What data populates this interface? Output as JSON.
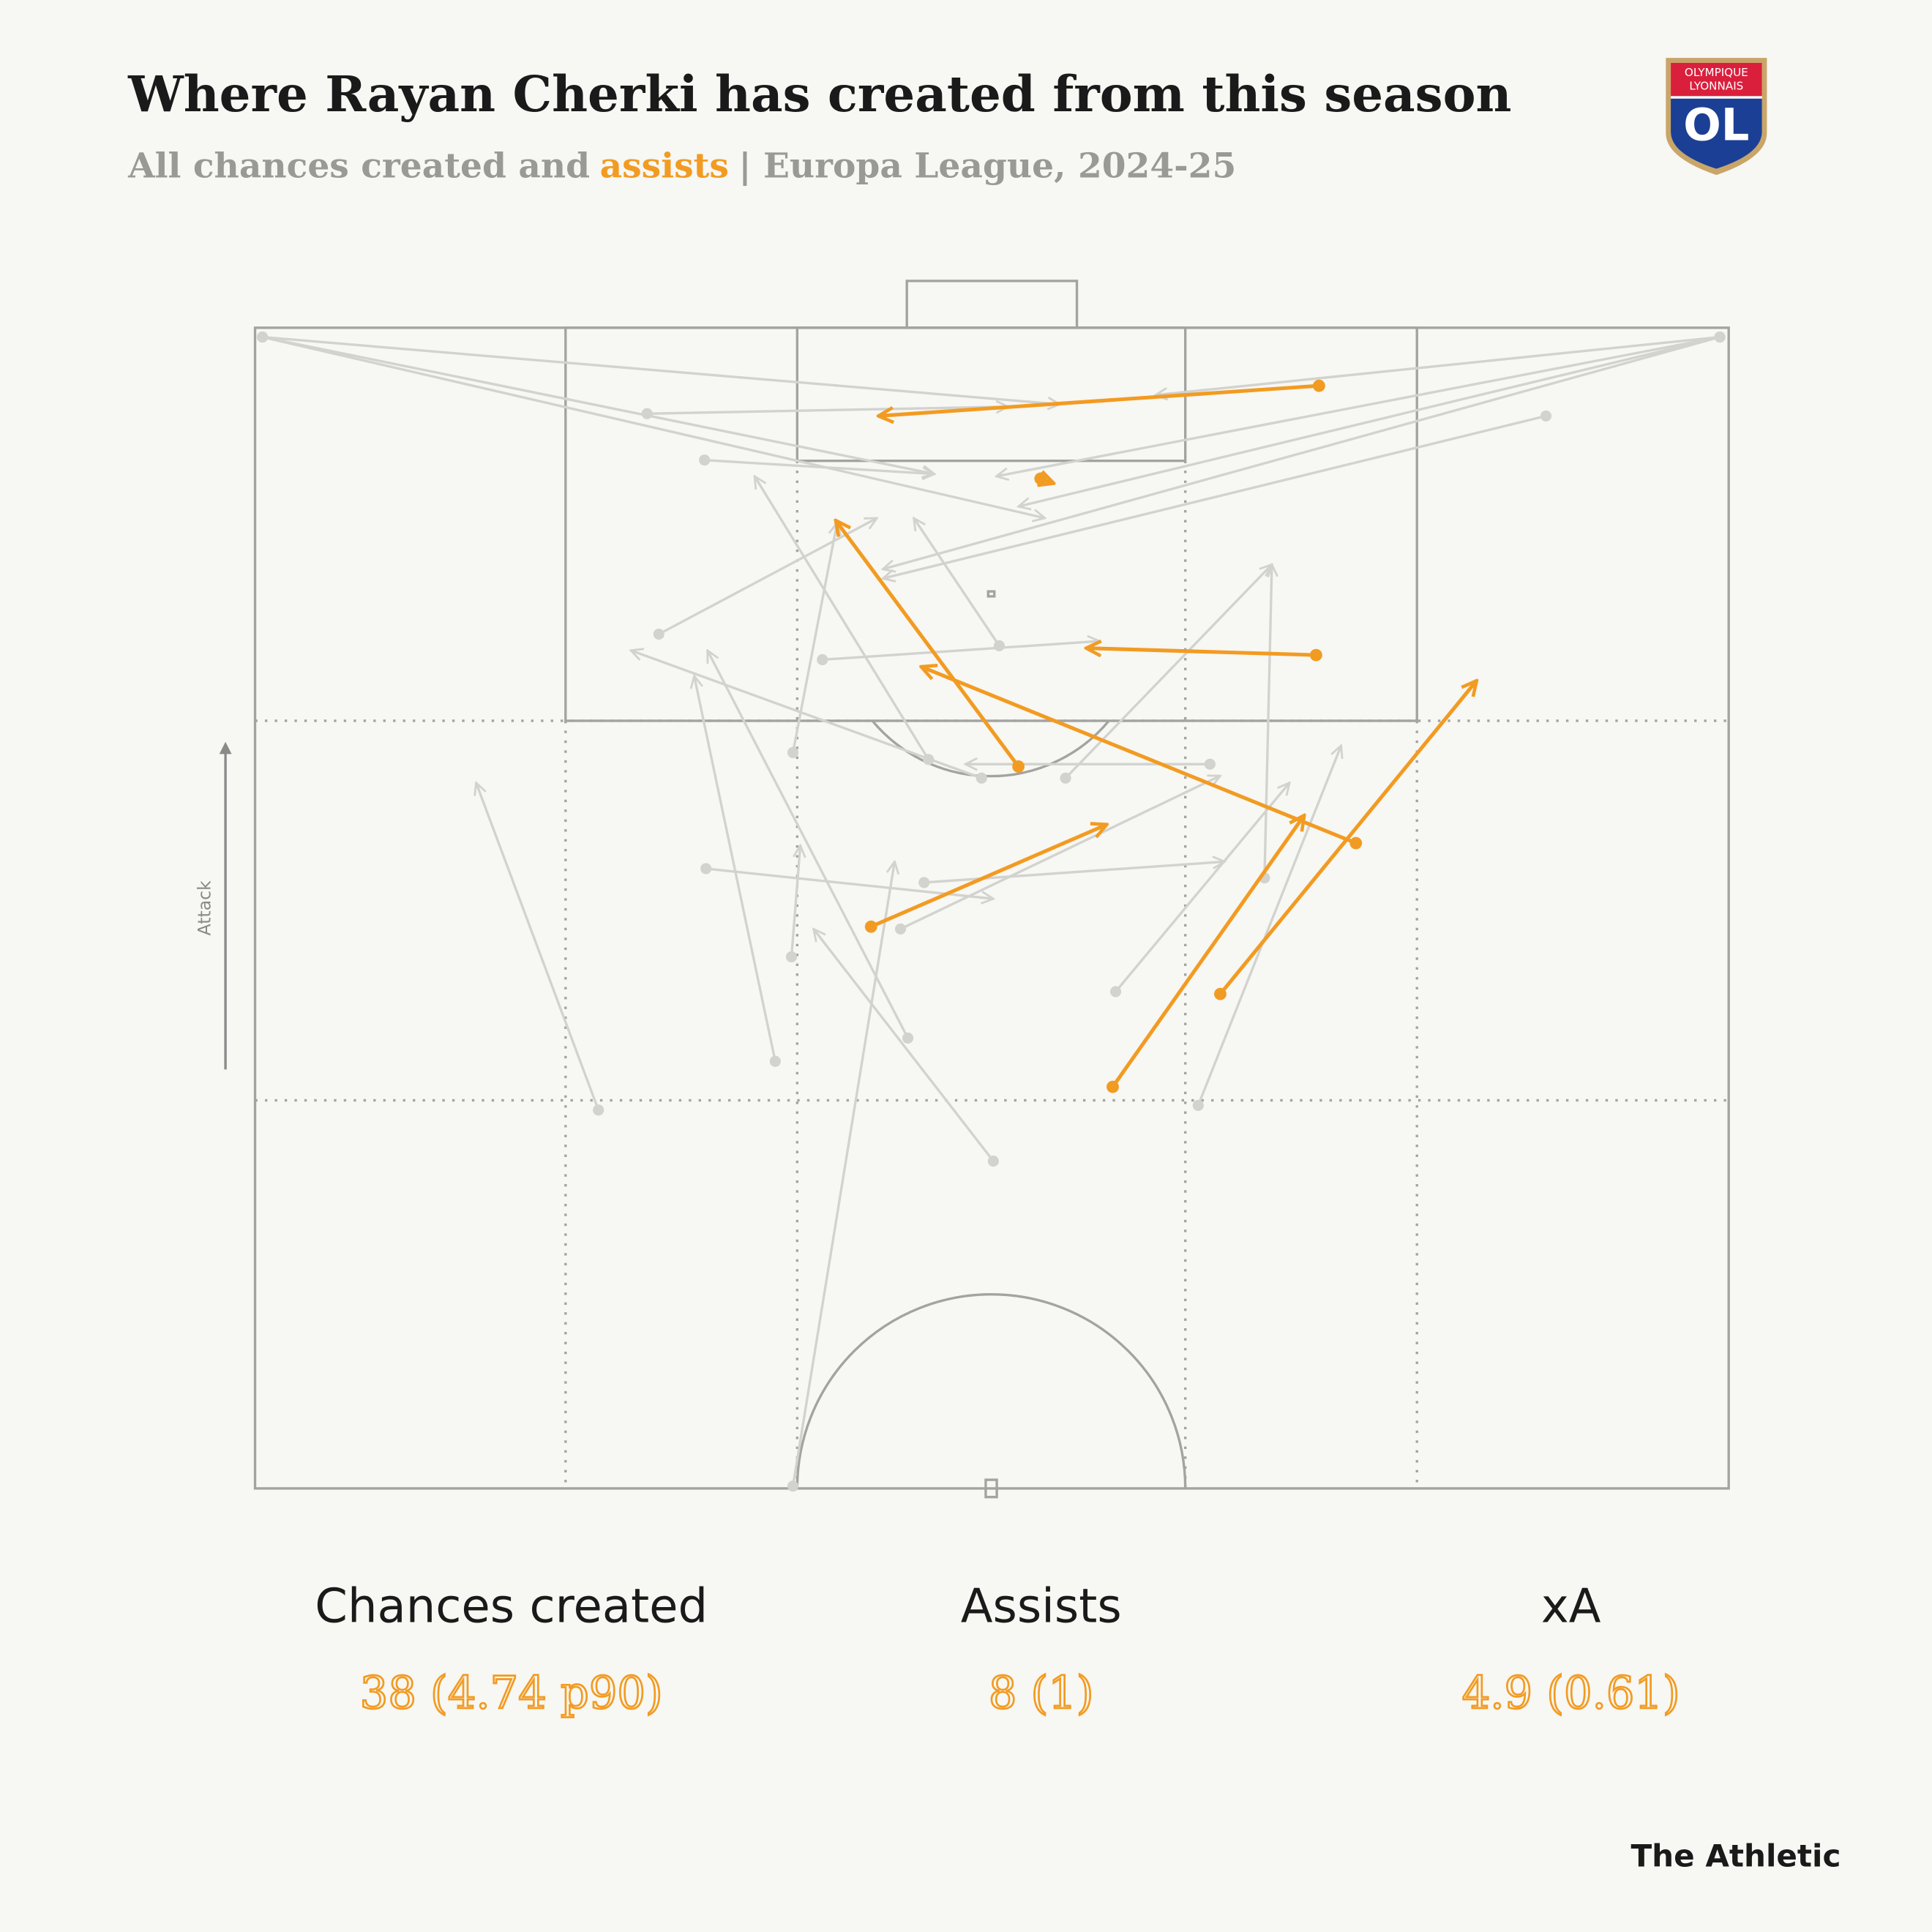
{
  "chart_data": {
    "type": "pass_map",
    "title": "Where Rayan Cherki has created from this season",
    "subtitle_start": "All chances created and",
    "subtitle_highlight": "assists",
    "subtitle_end": "| Europa League, 2024-25",
    "direction_label": "Attack",
    "logo": {
      "top": "OLYMPIQUE",
      "bottom": "LYONNAIS",
      "mark": "OL"
    },
    "source": "The Athletic",
    "xlim": [
      0,
      100
    ],
    "ylim": [
      50,
      100
    ],
    "color": "#d2d2cf",
    "assist_color": "#f29b22",
    "passes": [
      {
        "x": 0.5,
        "y": 99.6,
        "end_x": 46.1,
        "end_y": 93.7,
        "assist": false
      },
      {
        "x": 0.5,
        "y": 99.6,
        "end_x": 53.6,
        "end_y": 91.8,
        "assist": false
      },
      {
        "x": 0.5,
        "y": 99.6,
        "end_x": 54.6,
        "end_y": 96.7,
        "assist": false
      },
      {
        "x": 99.4,
        "y": 99.6,
        "end_x": 51.8,
        "end_y": 92.3,
        "assist": false
      },
      {
        "x": 99.4,
        "y": 99.6,
        "end_x": 50.3,
        "end_y": 93.6,
        "assist": false
      },
      {
        "x": 99.4,
        "y": 99.6,
        "end_x": 42.6,
        "end_y": 89.6,
        "assist": false
      },
      {
        "x": 99.4,
        "y": 99.6,
        "end_x": 61.1,
        "end_y": 97.1,
        "assist": false
      },
      {
        "x": 26.6,
        "y": 96.3,
        "end_x": 51.1,
        "end_y": 96.6,
        "assist": false
      },
      {
        "x": 87.6,
        "y": 96.2,
        "end_x": 42.6,
        "end_y": 89.2,
        "assist": false
      },
      {
        "x": 30.5,
        "y": 94.3,
        "end_x": 46.1,
        "end_y": 93.7,
        "assist": false
      },
      {
        "x": 27.4,
        "y": 86.8,
        "end_x": 42.2,
        "end_y": 91.8,
        "assist": false
      },
      {
        "x": 38.5,
        "y": 85.7,
        "end_x": 57.3,
        "end_y": 86.5,
        "assist": false
      },
      {
        "x": 50.5,
        "y": 86.3,
        "end_x": 44.7,
        "end_y": 91.8,
        "assist": false
      },
      {
        "x": 45.7,
        "y": 81.4,
        "end_x": 33.9,
        "end_y": 93.6,
        "assist": false
      },
      {
        "x": 36.5,
        "y": 81.7,
        "end_x": 39.5,
        "end_y": 91.6,
        "assist": false
      },
      {
        "x": 49.3,
        "y": 80.6,
        "end_x": 25.5,
        "end_y": 86.1,
        "assist": false
      },
      {
        "x": 55.0,
        "y": 80.6,
        "end_x": 69.0,
        "end_y": 89.8,
        "assist": false
      },
      {
        "x": 64.8,
        "y": 81.2,
        "end_x": 48.2,
        "end_y": 81.2,
        "assist": false
      },
      {
        "x": 30.6,
        "y": 76.7,
        "end_x": 50.1,
        "end_y": 75.4,
        "assist": false
      },
      {
        "x": 45.4,
        "y": 76.1,
        "end_x": 65.8,
        "end_y": 77.0,
        "assist": false
      },
      {
        "x": 43.8,
        "y": 74.1,
        "end_x": 65.5,
        "end_y": 80.7,
        "assist": false
      },
      {
        "x": 36.4,
        "y": 72.9,
        "end_x": 37.0,
        "end_y": 77.7,
        "assist": false
      },
      {
        "x": 35.3,
        "y": 68.4,
        "end_x": 29.8,
        "end_y": 85.0,
        "assist": false
      },
      {
        "x": 44.3,
        "y": 69.4,
        "end_x": 30.7,
        "end_y": 86.1,
        "assist": false
      },
      {
        "x": 23.3,
        "y": 66.3,
        "end_x": 15.0,
        "end_y": 80.4,
        "assist": false
      },
      {
        "x": 58.4,
        "y": 71.4,
        "end_x": 70.2,
        "end_y": 80.4,
        "assist": false
      },
      {
        "x": 64.0,
        "y": 66.5,
        "end_x": 73.7,
        "end_y": 82.0,
        "assist": false
      },
      {
        "x": 50.1,
        "y": 64.1,
        "end_x": 37.9,
        "end_y": 74.1,
        "assist": false
      },
      {
        "x": 36.5,
        "y": 50.1,
        "end_x": 43.4,
        "end_y": 77.0,
        "assist": false
      },
      {
        "x": 68.5,
        "y": 76.3,
        "end_x": 69.0,
        "end_y": 89.8,
        "assist": false
      },
      {
        "x": 72.2,
        "y": 97.5,
        "end_x": 42.3,
        "end_y": 96.2,
        "assist": true
      },
      {
        "x": 53.3,
        "y": 93.5,
        "end_x": 54.2,
        "end_y": 93.3,
        "assist": true
      },
      {
        "x": 51.8,
        "y": 81.1,
        "end_x": 39.4,
        "end_y": 91.7,
        "assist": true
      },
      {
        "x": 72.0,
        "y": 85.9,
        "end_x": 56.4,
        "end_y": 86.2,
        "assist": true
      },
      {
        "x": 74.7,
        "y": 77.8,
        "end_x": 45.2,
        "end_y": 85.4,
        "assist": true
      },
      {
        "x": 41.8,
        "y": 74.2,
        "end_x": 57.8,
        "end_y": 78.6,
        "assist": true
      },
      {
        "x": 58.2,
        "y": 67.3,
        "end_x": 71.2,
        "end_y": 79.0,
        "assist": true
      },
      {
        "x": 65.5,
        "y": 71.3,
        "end_x": 82.9,
        "end_y": 84.8,
        "assist": true
      }
    ],
    "stats": [
      {
        "label": "Chances created",
        "value": "38 (4.74 p90)"
      },
      {
        "label": "Assists",
        "value": "8 (1)"
      },
      {
        "label": "xA",
        "value": "4.9 (0.61)"
      }
    ]
  }
}
